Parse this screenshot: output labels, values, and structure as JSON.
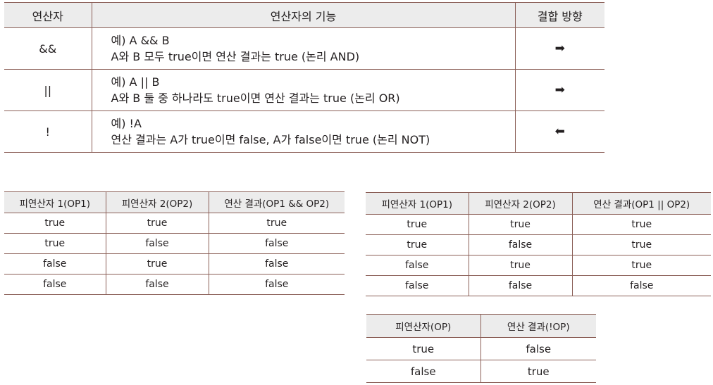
{
  "operators_table": {
    "headers": [
      "연산자",
      "연산자의 기능",
      "결합 방향"
    ],
    "rows": [
      {
        "operator": "&&",
        "example": "예) A && B",
        "description": "A와 B 모두 true이면 연산 결과는 true (논리 AND)",
        "direction": "➡",
        "direction_icon": "right-arrow-icon"
      },
      {
        "operator": "||",
        "example": "예) A || B",
        "description": "A와 B 둘 중 하나라도 true이면 연산 결과는 true (논리 OR)",
        "direction": "➡",
        "direction_icon": "right-arrow-icon"
      },
      {
        "operator": "!",
        "example": "예) !A",
        "description": "연산 결과는 A가 true이면 false, A가 false이면 true (논리 NOT)",
        "direction": "⬅",
        "direction_icon": "left-arrow-icon"
      }
    ]
  },
  "and_table": {
    "headers": [
      "피연산자 1(OP1)",
      "피연산자 2(OP2)",
      "연산 결과(OP1 && OP2)"
    ],
    "rows": [
      [
        "true",
        "true",
        "true"
      ],
      [
        "true",
        "false",
        "false"
      ],
      [
        "false",
        "true",
        "false"
      ],
      [
        "false",
        "false",
        "false"
      ]
    ]
  },
  "or_table": {
    "headers": [
      "피연산자 1(OP1)",
      "피연산자 2(OP2)",
      "연산 결과(OP1 || OP2)"
    ],
    "rows": [
      [
        "true",
        "true",
        "true"
      ],
      [
        "true",
        "false",
        "true"
      ],
      [
        "false",
        "true",
        "true"
      ],
      [
        "false",
        "false",
        "false"
      ]
    ]
  },
  "not_table": {
    "headers": [
      "피연산자(OP)",
      "연산 결과(!OP)"
    ],
    "rows": [
      [
        "true",
        "false"
      ],
      [
        "false",
        "true"
      ]
    ]
  },
  "colors": {
    "rule": "#8a5e56",
    "header_bg": "#ececec",
    "text": "#231f20"
  }
}
